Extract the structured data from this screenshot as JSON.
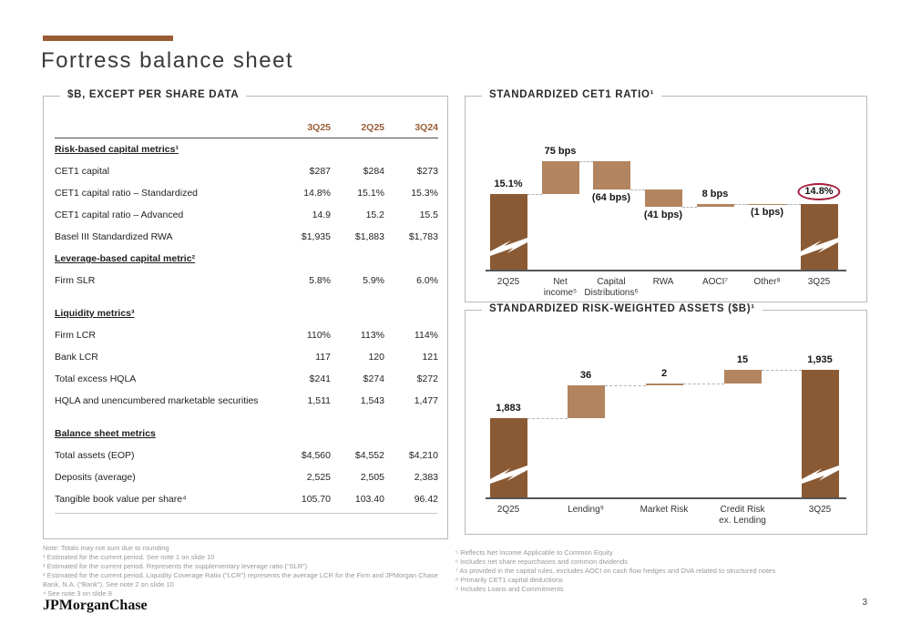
{
  "title": "Fortress balance sheet",
  "colors": {
    "accent": "#9a5c35",
    "bar_dark": "#8a5a34",
    "bar_light": "#b2845f",
    "highlight_circle": "#a51e3c"
  },
  "table": {
    "title": "$B, EXCEPT PER SHARE DATA",
    "columns": [
      "3Q25",
      "2Q25",
      "3Q24"
    ],
    "rows": [
      {
        "type": "section",
        "label": "Risk-based capital metrics¹"
      },
      {
        "type": "data",
        "label": "CET1 capital",
        "values": [
          "$287",
          "$284",
          "$273"
        ]
      },
      {
        "type": "data",
        "label": "CET1 capital ratio – Standardized",
        "values": [
          "14.8%",
          "15.1%",
          "15.3%"
        ]
      },
      {
        "type": "data",
        "label": "CET1 capital ratio – Advanced",
        "values": [
          "14.9",
          "15.2",
          "15.5"
        ]
      },
      {
        "type": "data",
        "label": "Basel III Standardized RWA",
        "values": [
          "$1,935",
          "$1,883",
          "$1,783"
        ]
      },
      {
        "type": "section",
        "label": "Leverage-based capital metric²"
      },
      {
        "type": "data",
        "label": "Firm SLR",
        "values": [
          "5.8%",
          "5.9%",
          "6.0%"
        ]
      },
      {
        "type": "spacer"
      },
      {
        "type": "section",
        "label": "Liquidity metrics³"
      },
      {
        "type": "data",
        "label": "Firm LCR",
        "values": [
          "110%",
          "113%",
          "114%"
        ]
      },
      {
        "type": "data",
        "label": "Bank LCR",
        "values": [
          "117",
          "120",
          "121"
        ]
      },
      {
        "type": "data",
        "label": "Total excess HQLA",
        "values": [
          "$241",
          "$274",
          "$272"
        ]
      },
      {
        "type": "data",
        "label": "HQLA and unencumbered marketable securities",
        "values": [
          "1,511",
          "1,543",
          "1,477"
        ]
      },
      {
        "type": "spacer"
      },
      {
        "type": "section",
        "label": "Balance sheet metrics"
      },
      {
        "type": "data",
        "label": "Total assets (EOP)",
        "values": [
          "$4,560",
          "$4,552",
          "$4,210"
        ]
      },
      {
        "type": "data",
        "label": "Deposits (average)",
        "values": [
          "2,525",
          "2,505",
          "2,383"
        ]
      },
      {
        "type": "data",
        "label": "Tangible book value per share⁴",
        "values": [
          "105.70",
          "103.40",
          "96.42"
        ]
      }
    ]
  },
  "chart_data": [
    {
      "type": "waterfall",
      "title": "STANDARDIZED CET1 RATIO¹",
      "unit": "CET1 ratio %, deltas in bps",
      "axis_break": true,
      "columns": [
        {
          "label": "2Q25",
          "kind": "total",
          "value": 15.1,
          "value_label": "15.1%"
        },
        {
          "label": "Net\nincome⁵",
          "kind": "delta",
          "value": 0.75,
          "value_label": "75 bps"
        },
        {
          "label": "Capital\nDistributions⁶",
          "kind": "delta",
          "value": -0.64,
          "value_label": "(64 bps)"
        },
        {
          "label": "RWA",
          "kind": "delta",
          "value": -0.41,
          "value_label": "(41 bps)"
        },
        {
          "label": "AOCI⁷",
          "kind": "delta",
          "value": 0.08,
          "value_label": "8 bps"
        },
        {
          "label": "Other⁸",
          "kind": "delta",
          "value": -0.01,
          "value_label": "(1 bps)"
        },
        {
          "label": "3Q25",
          "kind": "total_end",
          "value": 14.8,
          "value_label": "14.8%",
          "circled": true
        }
      ]
    },
    {
      "type": "waterfall",
      "title": "STANDARDIZED RISK-WEIGHTED ASSETS ($B)¹",
      "unit": "$B",
      "axis_break": true,
      "columns": [
        {
          "label": "2Q25",
          "kind": "total",
          "value": 1883,
          "value_label": "1,883"
        },
        {
          "label": "Lending⁹",
          "kind": "delta",
          "value": 36,
          "value_label": "36"
        },
        {
          "label": "Market Risk",
          "kind": "delta",
          "value": 2,
          "value_label": "2"
        },
        {
          "label": "Credit Risk\nex. Lending",
          "kind": "delta",
          "value": 15,
          "value_label": "15"
        },
        {
          "label": "3Q25",
          "kind": "total_end",
          "value": 1935,
          "value_label": "1,935"
        }
      ]
    }
  ],
  "footnotes_left": [
    "Note: Totals may not sum due to rounding",
    "¹ Estimated for the current period. See note 1 on slide 10",
    "² Estimated for the current period. Represents the supplementary leverage ratio (“SLR”)",
    "³ Estimated for the current period. Liquidity Coverage Ratio (“LCR”) represents the average LCR for the Firm and JPMorgan Chase Bank, N.A. (“Bank”). See note 2 on slide 10",
    "⁴ See note 3 on slide 9"
  ],
  "footnotes_right": [
    "⁵ Reflects Net Income Applicable to Common Equity",
    "⁶ Includes net share repurchases and common dividends",
    "⁷ As provided in the capital rules, excludes AOCI on cash flow hedges and DVA related to structured notes",
    "⁸ Primarily CET1 capital deductions",
    "⁹ Includes Loans and Commitments"
  ],
  "footer": {
    "logo": "JPMorganChase",
    "page_number": "3"
  }
}
